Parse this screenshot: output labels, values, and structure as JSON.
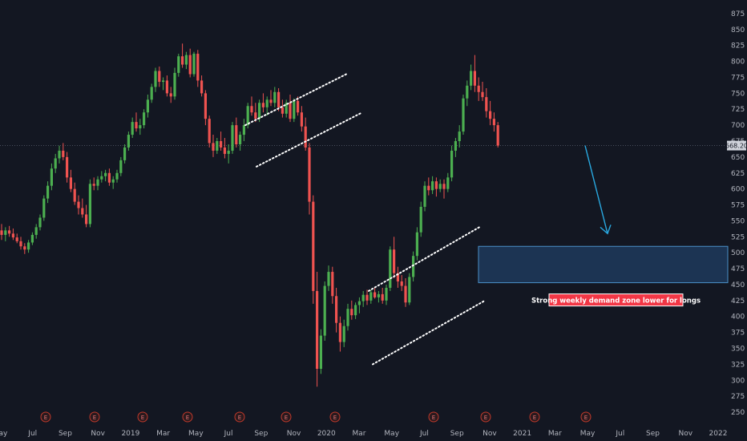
{
  "chart_data": {
    "type": "candlestick",
    "timeframe": "weekly",
    "colors": {
      "background": "#131722",
      "up": "#26a69a",
      "down": "#ef5350",
      "up_body": "#4caf50",
      "zone_fill": "#1e3a5c",
      "zone_border": "#4a90c8",
      "arrow": "#29a8e0",
      "label_bg": "#f23645",
      "axis_text": "#b2b5be",
      "price_line": "#6b7080"
    },
    "y_axis": {
      "ylim": [
        240,
        890
      ],
      "ticks": [
        250,
        275,
        300,
        325,
        350,
        375,
        400,
        425,
        450,
        475,
        500,
        525,
        550,
        575,
        600,
        625,
        650,
        675,
        700,
        725,
        750,
        775,
        800,
        825,
        850,
        875
      ]
    },
    "x_axis": {
      "tick_labels": [
        "May",
        "Jul",
        "Sep",
        "Nov",
        "2019",
        "Mar",
        "May",
        "Jul",
        "Sep",
        "Nov",
        "2020",
        "Mar",
        "May",
        "Jul",
        "Sep",
        "Nov",
        "2021",
        "Mar",
        "May",
        "Jul",
        "Sep",
        "Nov",
        "2022"
      ]
    },
    "last_price": "668.20",
    "earnings_marker_label": "E",
    "earnings_marker_count": 12,
    "annotations": {
      "demand_zone": {
        "low": 453,
        "high": 510,
        "label": "Strong weekly demand zone lower for longs"
      },
      "channel_2019": {
        "upper": [
          700,
          780
        ],
        "lower": [
          635,
          720
        ]
      },
      "channel_2020": {
        "upper": [
          440,
          540
        ],
        "lower": [
          325,
          425
        ]
      },
      "projection_arrow": {
        "from": 668,
        "to": 530
      }
    },
    "ohlc": [
      [
        535,
        545,
        520,
        528
      ],
      [
        528,
        540,
        518,
        535
      ],
      [
        535,
        542,
        525,
        530
      ],
      [
        530,
        538,
        520,
        524
      ],
      [
        524,
        530,
        515,
        518
      ],
      [
        518,
        525,
        505,
        510
      ],
      [
        510,
        515,
        498,
        505
      ],
      [
        505,
        520,
        500,
        516
      ],
      [
        516,
        532,
        512,
        528
      ],
      [
        528,
        545,
        522,
        540
      ],
      [
        540,
        560,
        535,
        555
      ],
      [
        555,
        590,
        550,
        585
      ],
      [
        585,
        612,
        578,
        605
      ],
      [
        605,
        640,
        598,
        632
      ],
      [
        632,
        655,
        625,
        648
      ],
      [
        648,
        668,
        640,
        660
      ],
      [
        660,
        672,
        645,
        650
      ],
      [
        650,
        658,
        610,
        618
      ],
      [
        618,
        630,
        595,
        600
      ],
      [
        600,
        610,
        575,
        580
      ],
      [
        580,
        590,
        560,
        570
      ],
      [
        570,
        585,
        555,
        560
      ],
      [
        560,
        575,
        540,
        545
      ],
      [
        545,
        615,
        540,
        608
      ],
      [
        608,
        618,
        598,
        605
      ],
      [
        605,
        620,
        598,
        615
      ],
      [
        615,
        628,
        610,
        620
      ],
      [
        620,
        630,
        612,
        625
      ],
      [
        625,
        632,
        605,
        610
      ],
      [
        610,
        620,
        600,
        615
      ],
      [
        615,
        630,
        610,
        625
      ],
      [
        625,
        650,
        620,
        645
      ],
      [
        645,
        670,
        640,
        665
      ],
      [
        665,
        690,
        660,
        685
      ],
      [
        685,
        712,
        680,
        705
      ],
      [
        705,
        720,
        690,
        695
      ],
      [
        695,
        710,
        685,
        700
      ],
      [
        700,
        725,
        695,
        720
      ],
      [
        720,
        748,
        712,
        740
      ],
      [
        740,
        765,
        735,
        760
      ],
      [
        760,
        790,
        752,
        785
      ],
      [
        785,
        792,
        760,
        768
      ],
      [
        768,
        775,
        755,
        770
      ],
      [
        770,
        778,
        745,
        750
      ],
      [
        750,
        760,
        735,
        745
      ],
      [
        745,
        790,
        740,
        782
      ],
      [
        782,
        812,
        776,
        808
      ],
      [
        808,
        828,
        790,
        795
      ],
      [
        795,
        815,
        788,
        810
      ],
      [
        810,
        820,
        775,
        780
      ],
      [
        780,
        815,
        776,
        812
      ],
      [
        812,
        818,
        760,
        770
      ],
      [
        770,
        778,
        745,
        750
      ],
      [
        750,
        755,
        700,
        710
      ],
      [
        710,
        715,
        665,
        672
      ],
      [
        672,
        685,
        650,
        660
      ],
      [
        660,
        680,
        655,
        675
      ],
      [
        675,
        690,
        660,
        665
      ],
      [
        665,
        680,
        648,
        655
      ],
      [
        655,
        670,
        640,
        660
      ],
      [
        660,
        705,
        655,
        700
      ],
      [
        700,
        712,
        665,
        670
      ],
      [
        670,
        690,
        660,
        685
      ],
      [
        685,
        710,
        675,
        700
      ],
      [
        700,
        735,
        695,
        730
      ],
      [
        730,
        745,
        715,
        720
      ],
      [
        720,
        735,
        705,
        710
      ],
      [
        710,
        740,
        705,
        735
      ],
      [
        735,
        750,
        720,
        728
      ],
      [
        728,
        745,
        715,
        740
      ],
      [
        740,
        755,
        730,
        735
      ],
      [
        735,
        760,
        728,
        752
      ],
      [
        752,
        758,
        722,
        728
      ],
      [
        728,
        740,
        712,
        718
      ],
      [
        718,
        740,
        712,
        735
      ],
      [
        735,
        748,
        705,
        710
      ],
      [
        710,
        742,
        705,
        738
      ],
      [
        738,
        745,
        715,
        720
      ],
      [
        720,
        730,
        690,
        698
      ],
      [
        698,
        712,
        660,
        665
      ],
      [
        665,
        672,
        560,
        580
      ],
      [
        580,
        590,
        420,
        440
      ],
      [
        440,
        470,
        290,
        318
      ],
      [
        318,
        380,
        310,
        370
      ],
      [
        370,
        455,
        362,
        448
      ],
      [
        448,
        480,
        440,
        470
      ],
      [
        470,
        478,
        420,
        432
      ],
      [
        432,
        445,
        375,
        390
      ],
      [
        390,
        400,
        345,
        360
      ],
      [
        360,
        395,
        352,
        385
      ],
      [
        385,
        420,
        378,
        412
      ],
      [
        412,
        425,
        395,
        402
      ],
      [
        402,
        422,
        396,
        418
      ],
      [
        418,
        430,
        405,
        424
      ],
      [
        424,
        440,
        415,
        434
      ],
      [
        434,
        442,
        418,
        425
      ],
      [
        425,
        442,
        420,
        438
      ],
      [
        438,
        445,
        428,
        430
      ],
      [
        430,
        440,
        422,
        435
      ],
      [
        435,
        445,
        420,
        425
      ],
      [
        425,
        450,
        418,
        445
      ],
      [
        445,
        510,
        440,
        505
      ],
      [
        505,
        525,
        460,
        468
      ],
      [
        468,
        478,
        445,
        455
      ],
      [
        455,
        465,
        440,
        448
      ],
      [
        448,
        460,
        415,
        422
      ],
      [
        422,
        468,
        418,
        462
      ],
      [
        462,
        502,
        455,
        495
      ],
      [
        495,
        540,
        488,
        532
      ],
      [
        532,
        580,
        525,
        572
      ],
      [
        572,
        612,
        565,
        605
      ],
      [
        605,
        618,
        590,
        598
      ],
      [
        598,
        620,
        592,
        612
      ],
      [
        612,
        618,
        588,
        600
      ],
      [
        600,
        615,
        595,
        608
      ],
      [
        608,
        615,
        585,
        600
      ],
      [
        600,
        625,
        595,
        618
      ],
      [
        618,
        668,
        612,
        660
      ],
      [
        660,
        680,
        650,
        675
      ],
      [
        675,
        700,
        665,
        690
      ],
      [
        690,
        748,
        685,
        742
      ],
      [
        742,
        770,
        730,
        762
      ],
      [
        762,
        795,
        755,
        785
      ],
      [
        785,
        810,
        752,
        762
      ],
      [
        762,
        775,
        738,
        752
      ],
      [
        752,
        768,
        738,
        744
      ],
      [
        744,
        758,
        712,
        722
      ],
      [
        722,
        738,
        700,
        710
      ],
      [
        710,
        720,
        690,
        700
      ],
      [
        700,
        705,
        665,
        668
      ]
    ]
  }
}
